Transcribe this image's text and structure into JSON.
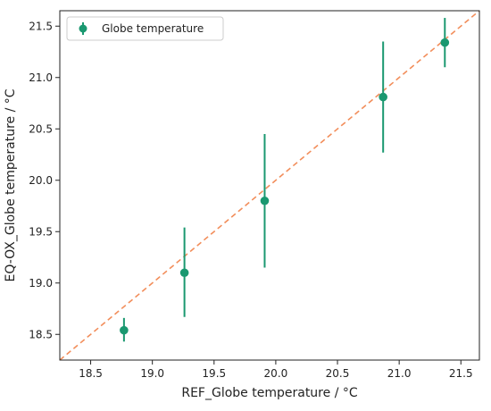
{
  "chart_data": {
    "type": "scatter",
    "title": "",
    "xlabel": "REF_Globe temperature / °C",
    "ylabel": "EQ-OX_Globe temperature / °C",
    "xlim": [
      18.25,
      21.65
    ],
    "ylim": [
      18.25,
      21.65
    ],
    "x_ticks": [
      "18.5",
      "19.0",
      "19.5",
      "20.0",
      "20.5",
      "21.0",
      "21.5"
    ],
    "y_ticks": [
      "18.5",
      "19.0",
      "19.5",
      "20.0",
      "20.5",
      "21.0",
      "21.5"
    ],
    "grid": false,
    "legend": {
      "placement": "top-left"
    },
    "series": [
      {
        "name": "Globe temperature",
        "color": "#1a9870",
        "marker": "circle",
        "points": [
          {
            "x": 18.77,
            "y": 18.54,
            "y_low": 18.43,
            "y_high": 18.66
          },
          {
            "x": 19.26,
            "y": 19.1,
            "y_low": 18.67,
            "y_high": 19.54
          },
          {
            "x": 19.91,
            "y": 19.8,
            "y_low": 19.15,
            "y_high": 20.45
          },
          {
            "x": 20.87,
            "y": 20.81,
            "y_low": 20.27,
            "y_high": 21.35
          },
          {
            "x": 21.37,
            "y": 21.34,
            "y_low": 21.1,
            "y_high": 21.58
          }
        ]
      }
    ],
    "reference_line": {
      "type": "identity",
      "style": "dashed",
      "color": "#f28e5b"
    }
  }
}
